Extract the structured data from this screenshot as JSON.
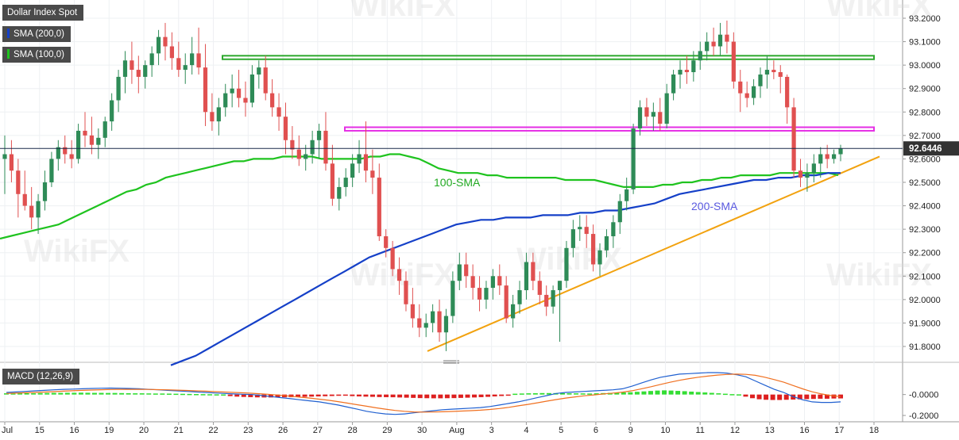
{
  "legend": {
    "instrument": "Dollar Index Spot",
    "sma200": "SMA (200,0)",
    "sma100": "SMA (100,0)",
    "macd": "MACD (12,26,9)"
  },
  "colors": {
    "up": "#2e8b57",
    "down": "#e05050",
    "sma100": "#1fc31f",
    "sma200": "#1540c8",
    "trendline": "#f2a20f",
    "resistance_green": "#2ea82e",
    "resistance_magenta": "#e52ee5",
    "macd_line": "#2060d0",
    "signal_line": "#f07020",
    "hist_pos": "#33dd33",
    "hist_neg": "#dd1f1f",
    "price_tag": "#333333"
  },
  "watermark": "WikiFX",
  "chart_data": {
    "type": "candlestick",
    "title": "Dollar Index Spot",
    "y_ticks": [
      "93.2000",
      "93.1000",
      "93.0000",
      "92.9000",
      "92.8000",
      "92.7000",
      "92.6000",
      "92.5000",
      "92.4000",
      "92.3000",
      "92.2000",
      "92.1000",
      "92.0000",
      "91.9000",
      "91.8000"
    ],
    "ylim": [
      91.75,
      93.24
    ],
    "x_ticks": [
      "Jul",
      "15",
      "16",
      "19",
      "20",
      "21",
      "22",
      "23",
      "26",
      "27",
      "28",
      "29",
      "30",
      "Aug",
      "3",
      "4",
      "5",
      "6",
      "9",
      "10",
      "11",
      "12",
      "13",
      "16",
      "17",
      "18"
    ],
    "last_price": "92.6446",
    "annotations": [
      "100-SMA",
      "200-SMA"
    ],
    "levels": [
      {
        "name": "upper resistance zone",
        "low": 93.025,
        "high": 93.04
      },
      {
        "name": "middle resistance zone",
        "low": 92.72,
        "high": 92.735
      }
    ],
    "trendline": {
      "from": 91.78,
      "to": 92.61
    },
    "ohlc": [
      [
        92.6,
        92.7,
        92.45,
        92.62
      ],
      [
        92.62,
        92.68,
        92.5,
        92.55
      ],
      [
        92.55,
        92.6,
        92.35,
        92.45
      ],
      [
        92.45,
        92.55,
        92.38,
        92.4
      ],
      [
        92.4,
        92.48,
        92.3,
        92.35
      ],
      [
        92.35,
        92.45,
        92.28,
        92.42
      ],
      [
        92.42,
        92.55,
        92.38,
        92.5
      ],
      [
        92.5,
        92.63,
        92.48,
        92.6
      ],
      [
        92.6,
        92.68,
        92.55,
        92.65
      ],
      [
        92.65,
        92.7,
        92.58,
        92.62
      ],
      [
        92.62,
        92.68,
        92.56,
        92.6
      ],
      [
        92.6,
        92.75,
        92.58,
        92.72
      ],
      [
        92.72,
        92.8,
        92.65,
        92.7
      ],
      [
        92.7,
        92.78,
        92.62,
        92.66
      ],
      [
        92.66,
        92.73,
        92.6,
        92.69
      ],
      [
        92.69,
        92.78,
        92.65,
        92.76
      ],
      [
        92.76,
        92.88,
        92.72,
        92.85
      ],
      [
        92.85,
        92.98,
        92.8,
        92.95
      ],
      [
        92.95,
        93.06,
        92.88,
        93.02
      ],
      [
        93.02,
        93.1,
        92.92,
        92.98
      ],
      [
        92.98,
        93.04,
        92.88,
        92.95
      ],
      [
        92.95,
        93.02,
        92.9,
        93.0
      ],
      [
        93.0,
        93.08,
        92.95,
        93.05
      ],
      [
        93.05,
        93.15,
        93.0,
        93.12
      ],
      [
        93.12,
        93.18,
        93.02,
        93.08
      ],
      [
        93.08,
        93.14,
        92.98,
        93.03
      ],
      [
        93.03,
        93.1,
        92.95,
        92.98
      ],
      [
        92.98,
        93.05,
        92.92,
        93.0
      ],
      [
        93.0,
        93.12,
        92.96,
        93.05
      ],
      [
        93.05,
        93.16,
        92.96,
        92.99
      ],
      [
        92.99,
        93.09,
        92.74,
        92.8
      ],
      [
        92.8,
        92.88,
        92.72,
        92.76
      ],
      [
        92.76,
        92.86,
        92.7,
        92.82
      ],
      [
        92.82,
        92.92,
        92.78,
        92.88
      ],
      [
        92.88,
        92.96,
        92.82,
        92.9
      ],
      [
        92.9,
        92.98,
        92.82,
        92.86
      ],
      [
        92.86,
        92.93,
        92.78,
        92.84
      ],
      [
        92.84,
        93.0,
        92.82,
        92.96
      ],
      [
        92.96,
        93.02,
        92.9,
        92.99
      ],
      [
        92.99,
        93.04,
        92.85,
        92.88
      ],
      [
        92.88,
        92.94,
        92.78,
        92.82
      ],
      [
        92.82,
        92.88,
        92.72,
        92.78
      ],
      [
        92.78,
        92.84,
        92.62,
        92.68
      ],
      [
        92.68,
        92.74,
        92.6,
        92.64
      ],
      [
        92.64,
        92.7,
        92.57,
        92.6
      ],
      [
        92.6,
        92.66,
        92.55,
        92.62
      ],
      [
        92.62,
        92.72,
        92.58,
        92.68
      ],
      [
        92.68,
        92.75,
        92.6,
        92.72
      ],
      [
        92.72,
        92.8,
        92.55,
        92.58
      ],
      [
        92.58,
        92.66,
        92.4,
        92.43
      ],
      [
        92.43,
        92.52,
        92.38,
        92.48
      ],
      [
        92.48,
        92.56,
        92.44,
        92.52
      ],
      [
        92.52,
        92.62,
        92.48,
        92.58
      ],
      [
        92.58,
        92.68,
        92.54,
        92.62
      ],
      [
        92.62,
        92.76,
        92.5,
        92.55
      ],
      [
        92.55,
        92.64,
        92.45,
        92.52
      ],
      [
        92.52,
        92.58,
        92.25,
        92.27
      ],
      [
        92.27,
        92.3,
        92.18,
        92.22
      ],
      [
        92.22,
        92.25,
        92.1,
        92.13
      ],
      [
        92.13,
        92.18,
        92.02,
        92.08
      ],
      [
        92.08,
        92.12,
        91.95,
        91.98
      ],
      [
        91.98,
        92.05,
        91.88,
        91.92
      ],
      [
        91.92,
        91.98,
        91.84,
        91.88
      ],
      [
        91.88,
        91.94,
        91.84,
        91.9
      ],
      [
        91.9,
        91.98,
        91.86,
        91.95
      ],
      [
        91.95,
        92.0,
        91.82,
        91.86
      ],
      [
        91.86,
        91.96,
        91.78,
        91.93
      ],
      [
        91.93,
        92.12,
        91.9,
        92.08
      ],
      [
        92.08,
        92.2,
        92.04,
        92.15
      ],
      [
        92.15,
        92.2,
        92.05,
        92.1
      ],
      [
        92.1,
        92.15,
        92.0,
        92.05
      ],
      [
        92.05,
        92.1,
        91.95,
        92.0
      ],
      [
        92.0,
        92.08,
        91.96,
        92.05
      ],
      [
        92.05,
        92.13,
        92.0,
        92.1
      ],
      [
        92.1,
        92.15,
        92.02,
        92.06
      ],
      [
        92.06,
        92.1,
        91.9,
        91.92
      ],
      [
        91.92,
        92.02,
        91.88,
        91.98
      ],
      [
        91.98,
        92.08,
        91.94,
        92.04
      ],
      [
        92.04,
        92.2,
        92.0,
        92.16
      ],
      [
        92.16,
        92.2,
        92.04,
        92.08
      ],
      [
        92.08,
        92.12,
        91.98,
        92.02
      ],
      [
        92.02,
        92.06,
        91.93,
        91.97
      ],
      [
        91.97,
        92.06,
        91.94,
        92.04
      ],
      [
        92.04,
        92.08,
        91.82,
        92.08
      ],
      [
        92.08,
        92.25,
        92.05,
        92.22
      ],
      [
        92.22,
        92.34,
        92.18,
        92.3
      ],
      [
        92.3,
        92.36,
        92.25,
        92.31
      ],
      [
        92.31,
        92.36,
        92.22,
        92.28
      ],
      [
        92.28,
        92.32,
        92.12,
        92.15
      ],
      [
        92.15,
        92.24,
        92.1,
        92.21
      ],
      [
        92.21,
        92.3,
        92.18,
        92.27
      ],
      [
        92.27,
        92.36,
        92.22,
        92.33
      ],
      [
        92.33,
        92.45,
        92.28,
        92.42
      ],
      [
        92.42,
        92.52,
        92.38,
        92.47
      ],
      [
        92.47,
        92.75,
        92.45,
        92.73
      ],
      [
        92.73,
        92.85,
        92.7,
        92.82
      ],
      [
        92.82,
        92.86,
        92.74,
        92.78
      ],
      [
        92.78,
        92.84,
        92.72,
        92.8
      ],
      [
        92.8,
        92.86,
        92.72,
        92.75
      ],
      [
        92.75,
        92.92,
        92.73,
        92.88
      ],
      [
        92.88,
        92.98,
        92.85,
        92.96
      ],
      [
        92.96,
        93.02,
        92.9,
        92.98
      ],
      [
        92.98,
        93.04,
        92.92,
        92.97
      ],
      [
        92.97,
        93.06,
        92.93,
        93.02
      ],
      [
        93.02,
        93.1,
        92.98,
        93.06
      ],
      [
        93.06,
        93.14,
        93.02,
        93.1
      ],
      [
        93.1,
        93.16,
        93.04,
        93.08
      ],
      [
        93.08,
        93.18,
        93.04,
        93.13
      ],
      [
        93.13,
        93.19,
        93.05,
        93.1
      ],
      [
        93.1,
        93.14,
        92.9,
        92.93
      ],
      [
        92.93,
        92.98,
        92.8,
        92.88
      ],
      [
        92.88,
        92.93,
        92.82,
        92.86
      ],
      [
        92.86,
        92.94,
        92.83,
        92.91
      ],
      [
        92.91,
        92.99,
        92.86,
        92.96
      ],
      [
        92.96,
        93.04,
        92.9,
        92.98
      ],
      [
        92.98,
        93.02,
        92.94,
        92.97
      ],
      [
        92.97,
        93.0,
        92.88,
        92.95
      ],
      [
        92.95,
        92.96,
        92.75,
        92.82
      ],
      [
        92.82,
        92.86,
        92.52,
        92.55
      ],
      [
        92.55,
        92.6,
        92.48,
        92.52
      ],
      [
        92.52,
        92.58,
        92.46,
        92.54
      ],
      [
        92.54,
        92.62,
        92.5,
        92.58
      ],
      [
        92.58,
        92.65,
        92.52,
        92.62
      ],
      [
        92.62,
        92.66,
        92.56,
        92.6
      ],
      [
        92.6,
        92.64,
        92.58,
        92.62
      ],
      [
        92.62,
        92.66,
        92.59,
        92.645
      ]
    ],
    "sma100": [
      92.26,
      92.27,
      92.28,
      92.29,
      92.3,
      92.31,
      92.32,
      92.34,
      92.36,
      92.38,
      92.4,
      92.42,
      92.44,
      92.46,
      92.47,
      92.49,
      92.5,
      92.52,
      92.53,
      92.54,
      92.55,
      92.56,
      92.57,
      92.58,
      92.59,
      92.59,
      92.6,
      92.6,
      92.6,
      92.61,
      92.61,
      92.61,
      92.61,
      92.6,
      92.6,
      92.6,
      92.6,
      92.6,
      92.61,
      92.61,
      92.62,
      92.62,
      92.61,
      92.6,
      92.58,
      92.56,
      92.55,
      92.54,
      92.54,
      92.54,
      92.53,
      92.53,
      92.52,
      92.52,
      92.52,
      92.52,
      92.52,
      92.52,
      92.51,
      92.51,
      92.51,
      92.51,
      92.5,
      92.49,
      92.48,
      92.48,
      92.48,
      92.48,
      92.49,
      92.49,
      92.5,
      92.5,
      92.51,
      92.51,
      92.52,
      92.52,
      92.53,
      92.53,
      92.53,
      92.53,
      92.54,
      92.54,
      92.54,
      92.54,
      92.54,
      92.54,
      92.53
    ],
    "sma200": [
      91.72,
      91.74,
      91.76,
      91.79,
      91.82,
      91.85,
      91.88,
      91.91,
      91.94,
      91.97,
      92.0,
      92.03,
      92.06,
      92.09,
      92.12,
      92.15,
      92.18,
      92.2,
      92.22,
      92.24,
      92.26,
      92.28,
      92.3,
      92.32,
      92.33,
      92.34,
      92.34,
      92.35,
      92.35,
      92.35,
      92.36,
      92.36,
      92.36,
      92.37,
      92.37,
      92.38,
      92.38,
      92.39,
      92.4,
      92.41,
      92.43,
      92.45,
      92.46,
      92.47,
      92.48,
      92.49,
      92.5,
      92.51,
      92.51,
      92.52,
      92.52,
      92.53,
      92.53,
      92.54,
      92.54
    ],
    "macd": {
      "y_ticks": [
        "-0.0000",
        "-0.2000"
      ],
      "ylim": [
        -0.23,
        0.24
      ],
      "hist": [
        0.012,
        0.011,
        0.012,
        0.013,
        0.012,
        0.014,
        0.015,
        0.016,
        0.016,
        0.017,
        0.017,
        0.018,
        0.017,
        0.016,
        0.016,
        0.015,
        0.015,
        0.014,
        0.013,
        0.012,
        0.012,
        0.011,
        0.01,
        0.01,
        0.009,
        0.008,
        0.007,
        0.006,
        0.005,
        0.004,
        0.003,
        0.002,
        0.001,
        -0.015,
        -0.02,
        -0.023,
        -0.025,
        -0.027,
        -0.028,
        -0.028,
        -0.027,
        -0.026,
        -0.025,
        -0.024,
        -0.022,
        -0.02,
        -0.018,
        -0.016,
        -0.014,
        -0.012,
        -0.01,
        -0.015,
        -0.018,
        -0.02,
        -0.022,
        -0.024,
        -0.025,
        -0.026,
        -0.028,
        -0.03,
        -0.032,
        -0.034,
        -0.035,
        -0.036,
        -0.036,
        -0.035,
        -0.034,
        -0.032,
        -0.03,
        -0.028,
        -0.025,
        -0.022,
        -0.018,
        -0.014,
        -0.01,
        0.008,
        0.01,
        0.012,
        0.013,
        0.014,
        0.014,
        0.014,
        0.013,
        0.012,
        0.012,
        0.011,
        0.01,
        0.012,
        0.014,
        0.016,
        0.018,
        0.02,
        0.022,
        0.026,
        0.03,
        0.034,
        0.038,
        0.04,
        0.038,
        0.035,
        0.032,
        0.028,
        0.024,
        0.02,
        0.016,
        0.012,
        0.008,
        0.004,
        0.002,
        -0.02,
        -0.035,
        -0.045,
        -0.05,
        -0.052,
        -0.052,
        -0.05,
        -0.048,
        -0.046,
        -0.044,
        -0.042,
        -0.04,
        -0.04,
        -0.038,
        -0.037
      ],
      "line": [
        0.02,
        0.025,
        0.03,
        0.035,
        0.04,
        0.045,
        0.05,
        0.052,
        0.055,
        0.058,
        0.06,
        0.062,
        0.06,
        0.058,
        0.055,
        0.05,
        0.045,
        0.04,
        0.035,
        0.03,
        0.025,
        0.02,
        0.015,
        0.01,
        0.006,
        0.003,
        0.0,
        -0.01,
        -0.02,
        -0.03,
        -0.04,
        -0.05,
        -0.06,
        -0.07,
        -0.085,
        -0.1,
        -0.12,
        -0.14,
        -0.16,
        -0.175,
        -0.185,
        -0.19,
        -0.185,
        -0.175,
        -0.165,
        -0.155,
        -0.145,
        -0.14,
        -0.135,
        -0.13,
        -0.125,
        -0.115,
        -0.1,
        -0.085,
        -0.07,
        -0.05,
        -0.03,
        -0.01,
        0.01,
        0.02,
        0.025,
        0.03,
        0.035,
        0.04,
        0.045,
        0.055,
        0.08,
        0.11,
        0.14,
        0.165,
        0.18,
        0.195,
        0.2,
        0.205,
        0.21,
        0.21,
        0.205,
        0.19,
        0.17,
        0.13,
        0.09,
        0.05,
        0.02,
        -0.02,
        -0.05,
        -0.07,
        -0.075,
        -0.075,
        -0.07
      ],
      "signal": [
        0.01,
        0.013,
        0.017,
        0.02,
        0.024,
        0.028,
        0.032,
        0.036,
        0.04,
        0.043,
        0.046,
        0.048,
        0.05,
        0.05,
        0.05,
        0.049,
        0.047,
        0.045,
        0.042,
        0.039,
        0.035,
        0.032,
        0.028,
        0.024,
        0.02,
        0.016,
        0.012,
        0.006,
        0.0,
        -0.008,
        -0.016,
        -0.025,
        -0.034,
        -0.044,
        -0.055,
        -0.068,
        -0.082,
        -0.097,
        -0.112,
        -0.127,
        -0.14,
        -0.152,
        -0.16,
        -0.166,
        -0.168,
        -0.167,
        -0.165,
        -0.162,
        -0.158,
        -0.154,
        -0.15,
        -0.143,
        -0.134,
        -0.122,
        -0.108,
        -0.094,
        -0.079,
        -0.063,
        -0.048,
        -0.034,
        -0.022,
        -0.012,
        -0.003,
        0.006,
        0.014,
        0.023,
        0.036,
        0.055,
        0.075,
        0.097,
        0.117,
        0.136,
        0.152,
        0.166,
        0.176,
        0.186,
        0.192,
        0.195,
        0.193,
        0.184,
        0.166,
        0.143,
        0.118,
        0.086,
        0.054,
        0.026,
        0.006,
        -0.01,
        -0.02
      ]
    }
  }
}
